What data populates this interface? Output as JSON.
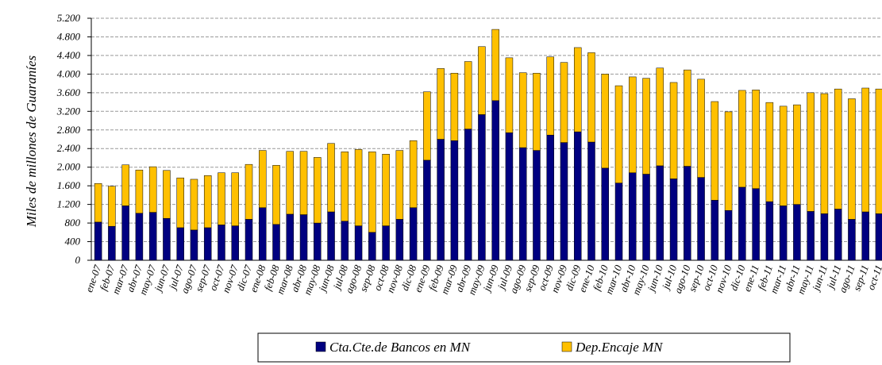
{
  "chart_data": {
    "type": "stacked_bar",
    "y_label": "Miles de millones de Guaraníes",
    "categories": [
      "ene-07",
      "feb-07",
      "mar-07",
      "abr-07",
      "may-07",
      "jun-07",
      "jul-07",
      "ago-07",
      "sep-07",
      "oct-07",
      "nov-07",
      "dic-07",
      "ene-08",
      "feb-08",
      "mar-08",
      "abr-08",
      "may-08",
      "jun-08",
      "jul-08",
      "ago-08",
      "sep-08",
      "oct-08",
      "nov-08",
      "dic-08",
      "ene-09",
      "feb-09",
      "mar-09",
      "abr-09",
      "may-09",
      "jun-09",
      "jul-09",
      "ago-09",
      "sep-09",
      "oct-09",
      "nov-09",
      "dic-09",
      "ene-10",
      "feb-10",
      "mar-10",
      "abr-10",
      "may-10",
      "jun-10",
      "jul-10",
      "ago-10",
      "sep-10",
      "oct-10",
      "nov-10",
      "dic-10",
      "ene-11",
      "feb-11",
      "mar-11",
      "abr-11",
      "may-11",
      "jun-11",
      "jul-11",
      "ago-11",
      "sep-11",
      "oct-11"
    ],
    "series": [
      {
        "name": "Cta.Cte.de Bancos en MN",
        "color": "#000080",
        "values": [
          820,
          730,
          1170,
          1010,
          1030,
          900,
          700,
          650,
          700,
          760,
          740,
          880,
          1130,
          770,
          990,
          980,
          800,
          1040,
          840,
          740,
          600,
          740,
          880,
          1130,
          2150,
          2600,
          2570,
          2820,
          3130,
          3430,
          2740,
          2420,
          2360,
          2690,
          2530,
          2760,
          2540,
          1980,
          1660,
          1880,
          1850,
          2030,
          1750,
          2020,
          1780,
          1290,
          1070,
          1570,
          1540,
          1260,
          1170,
          1200,
          1050,
          1000,
          1100,
          880,
          1040,
          1000
        ]
      },
      {
        "name": "Dep.Encaje MN",
        "color": "#ffc000",
        "values": [
          830,
          860,
          880,
          930,
          980,
          1030,
          1070,
          1090,
          1120,
          1120,
          1140,
          1180,
          1230,
          1270,
          1350,
          1360,
          1410,
          1470,
          1490,
          1640,
          1730,
          1540,
          1480,
          1440,
          1470,
          1520,
          1450,
          1450,
          1460,
          1530,
          1610,
          1610,
          1660,
          1680,
          1720,
          1810,
          1920,
          2020,
          2090,
          2060,
          2060,
          2100,
          2070,
          2070,
          2110,
          2120,
          2120,
          2080,
          2120,
          2130,
          2140,
          2140,
          2550,
          2580,
          2580,
          2590,
          2660,
          2680
        ]
      }
    ],
    "ylim": [
      0,
      5200
    ],
    "yticks": [
      0,
      400,
      800,
      {
        "value": 1200,
        "label": "1.200"
      },
      {
        "value": 1600,
        "label": "1.600"
      },
      {
        "value": 2000,
        "label": "2.000"
      },
      {
        "value": 2400,
        "label": "2.400"
      },
      {
        "value": 2800,
        "label": "2.800"
      },
      {
        "value": 3200,
        "label": "3.200"
      },
      {
        "value": 3600,
        "label": "3.600"
      },
      {
        "value": 4000,
        "label": "4.000"
      },
      {
        "value": 4400,
        "label": "4.400"
      },
      {
        "value": 4800,
        "label": "4.800"
      },
      {
        "value": 5200,
        "label": "5.200"
      }
    ],
    "grid": true
  }
}
